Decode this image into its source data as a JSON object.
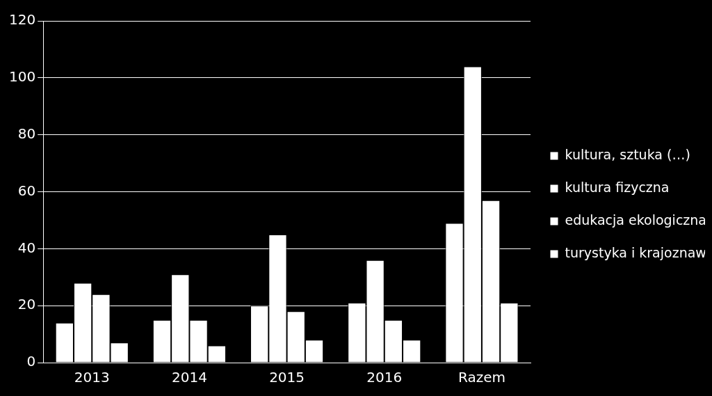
{
  "chart_data": {
    "type": "bar",
    "categories": [
      "2013",
      "2014",
      "2015",
      "2016",
      "Razem"
    ],
    "series": [
      {
        "name": "kultura, sztuka (…)",
        "color": "#ffffff",
        "values": [
          14,
          15,
          20,
          21,
          49
        ]
      },
      {
        "name": "kultura fizyczna",
        "color": "#ffffff",
        "values": [
          28,
          31,
          45,
          36,
          104
        ]
      },
      {
        "name": "edukacja ekologiczna",
        "color": "#ffffff",
        "values": [
          24,
          15,
          18,
          15,
          57
        ]
      },
      {
        "name": "turystyka i krajoznawstwo",
        "color": "#ffffff",
        "values": [
          7,
          6,
          8,
          8,
          21
        ]
      }
    ],
    "ylim": [
      0,
      120
    ],
    "yticks": [
      0,
      20,
      40,
      60,
      80,
      100,
      120
    ],
    "grid": true,
    "legend": "right"
  }
}
